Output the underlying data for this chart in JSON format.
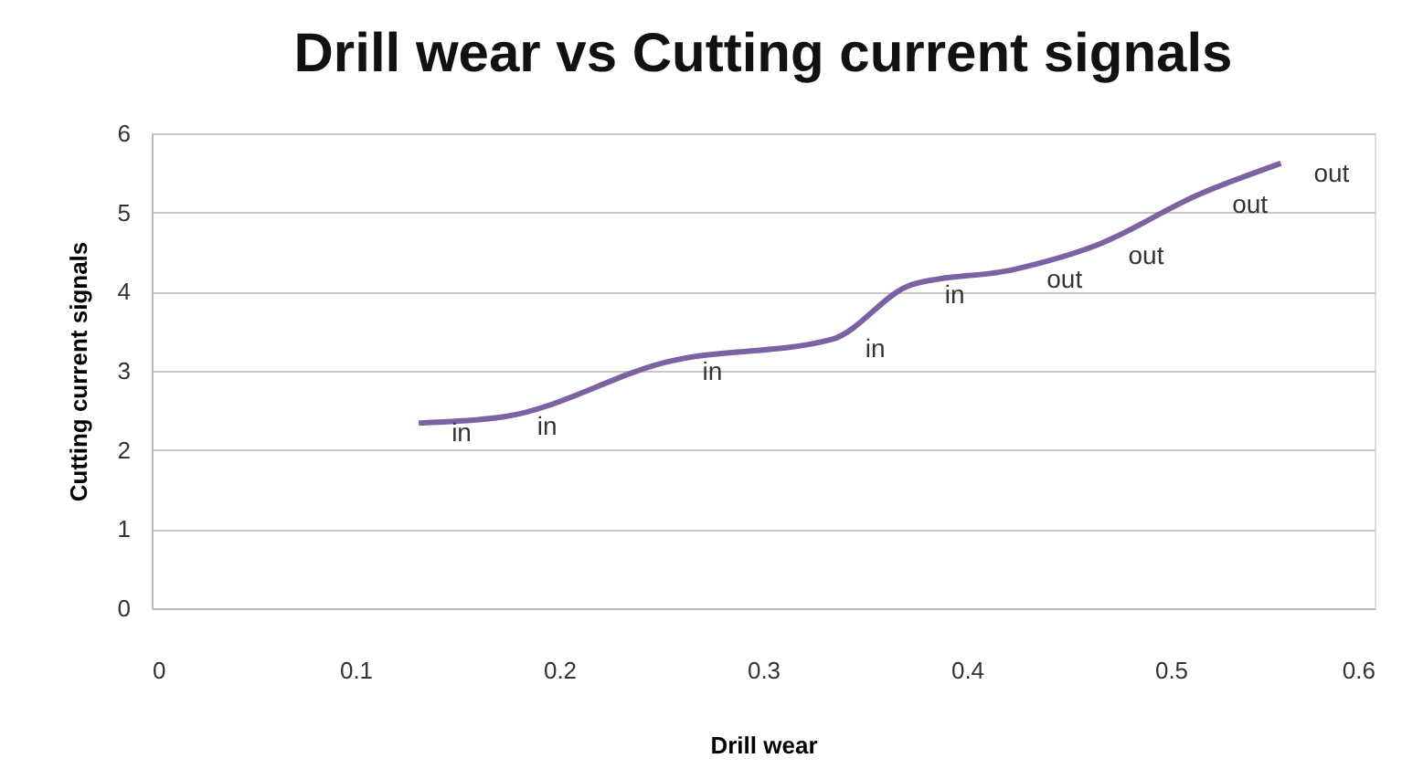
{
  "chart_data": {
    "type": "line",
    "title": "Drill wear vs Cutting current signals",
    "xlabel": "Drill wear",
    "ylabel": "Cutting current signals",
    "x": [
      0.131,
      0.173,
      0.254,
      0.334,
      0.373,
      0.423,
      0.463,
      0.514,
      0.554
    ],
    "series": [
      {
        "color": "#7b62a3",
        "values": [
          2.34,
          2.42,
          3.12,
          3.4,
          4.09,
          4.28,
          4.58,
          5.23,
          5.62
        ]
      }
    ],
    "annotations": [
      {
        "text": "in",
        "x": 0.131,
        "y": 2.34
      },
      {
        "text": "in",
        "x": 0.173,
        "y": 2.42
      },
      {
        "text": "in",
        "x": 0.254,
        "y": 3.12
      },
      {
        "text": "in",
        "x": 0.334,
        "y": 3.4
      },
      {
        "text": "in",
        "x": 0.373,
        "y": 4.09
      },
      {
        "text": "out",
        "x": 0.423,
        "y": 4.28
      },
      {
        "text": "out",
        "x": 0.463,
        "y": 4.58
      },
      {
        "text": "out",
        "x": 0.514,
        "y": 5.23
      },
      {
        "text": "out",
        "x": 0.554,
        "y": 5.62
      }
    ],
    "xlim": [
      0,
      0.6
    ],
    "xticks": [
      0,
      0.1,
      0.2,
      0.3,
      0.4,
      0.5,
      0.6
    ],
    "ylim": [
      0,
      6
    ],
    "yticks": [
      0,
      1,
      2,
      3,
      4,
      5,
      6
    ],
    "grid": "y",
    "marker": "none",
    "line_style": "solid"
  }
}
